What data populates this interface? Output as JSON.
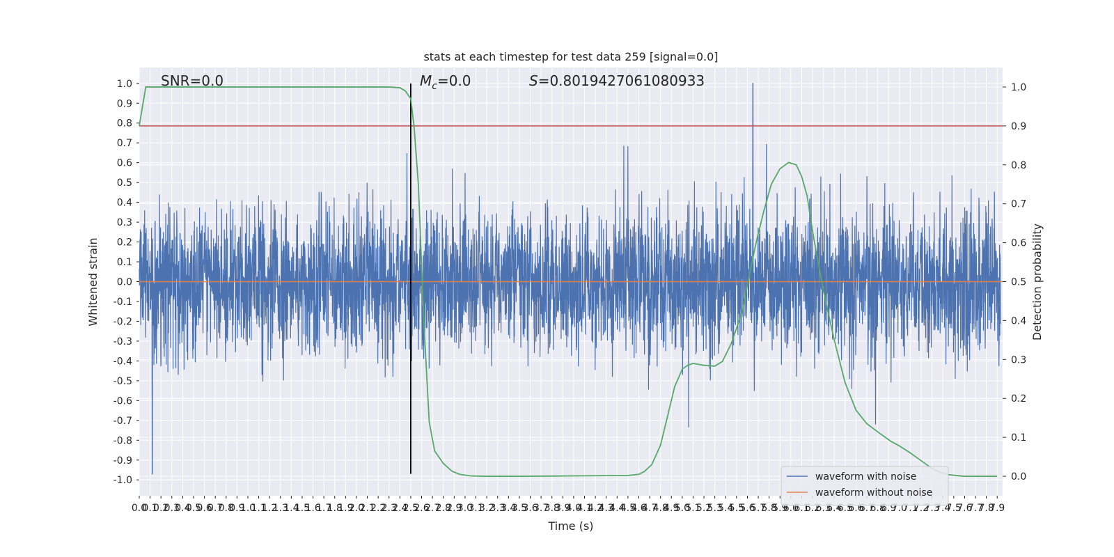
{
  "chart_data": {
    "type": "line",
    "title": "stats at each timestep for test data 259 [signal=0.0]",
    "xlabel": "Time (s)",
    "ylabel": "Whitened strain",
    "y2label": "Detection probability",
    "xlim": [
      0.0,
      7.95
    ],
    "ylim": [
      -1.08,
      1.08
    ],
    "y2lim": [
      -0.05,
      1.05
    ],
    "grid": true,
    "x_ticks": [
      "0.0",
      "0.1",
      "0.2",
      "0.3",
      "0.4",
      "0.5",
      "0.6",
      "0.7",
      "0.8",
      "0.9",
      "1.0",
      "1.1",
      "1.2",
      "1.3",
      "1.4",
      "1.5",
      "1.6",
      "1.7",
      "1.8",
      "1.9",
      "2.0",
      "2.1",
      "2.2",
      "2.3",
      "2.4",
      "2.5",
      "2.6",
      "2.7",
      "2.8",
      "2.9",
      "3.0",
      "3.1",
      "3.2",
      "3.3",
      "3.4",
      "3.5",
      "3.6",
      "3.7",
      "3.8",
      "3.9",
      "4.0",
      "4.1",
      "4.2",
      "4.3",
      "4.4",
      "4.5",
      "4.6",
      "4.7",
      "4.8",
      "4.9",
      "5.0",
      "5.1",
      "5.2",
      "5.3",
      "5.4",
      "5.5",
      "5.6",
      "5.7",
      "5.8",
      "5.9",
      "6.0",
      "6.1",
      "6.2",
      "6.3",
      "6.4",
      "6.5",
      "6.6",
      "6.7",
      "6.8",
      "6.9",
      "7.0",
      "7.1",
      "7.2",
      "7.3",
      "7.4",
      "7.5",
      "7.6",
      "7.7",
      "7.8",
      "7.9"
    ],
    "y_ticks": [
      "1.0",
      "0.9",
      "0.8",
      "0.7",
      "0.6",
      "0.5",
      "0.4",
      "0.3",
      "0.2",
      "0.1",
      "0.0",
      "-0.1",
      "-0.2",
      "-0.3",
      "-0.4",
      "-0.5",
      "-0.6",
      "-0.7",
      "-0.8",
      "-0.9",
      "-1.0"
    ],
    "y2_ticks": [
      "1.0",
      "0.9",
      "0.8",
      "0.7",
      "0.6",
      "0.5",
      "0.4",
      "0.3",
      "0.2",
      "0.1",
      "0.0"
    ],
    "annotations": {
      "snr": "SNR=0.0",
      "mc": "M",
      "mc_sub": "c",
      "mc_value": "=0.0",
      "s_symbol": "S",
      "s_value": "=0.8019427061080933"
    },
    "threshold": {
      "y2": 0.9,
      "color": "#c44e52"
    },
    "vertical_line": {
      "x": 2.5,
      "y_range": [
        -0.97,
        1.0
      ],
      "color": "#000000"
    },
    "noise_waveform": {
      "name": "waveform with noise",
      "color": "#4c72b0",
      "typical_amplitude": 0.32,
      "peak": {
        "x": 5.65,
        "y": 1.0
      },
      "min": {
        "x": 0.12,
        "y": -0.97
      }
    },
    "clean_waveform": {
      "name": "waveform without noise",
      "color": "#dd8452",
      "y": 0.0
    },
    "detection_probability": {
      "color": "#55a868",
      "x": [
        0.0,
        0.06,
        0.1,
        0.2,
        0.5,
        1.0,
        1.5,
        2.0,
        2.3,
        2.4,
        2.45,
        2.5,
        2.53,
        2.57,
        2.62,
        2.67,
        2.72,
        2.8,
        2.88,
        2.95,
        3.05,
        3.2,
        3.5,
        4.0,
        4.5,
        4.6,
        4.65,
        4.72,
        4.8,
        4.87,
        4.93,
        5.0,
        5.05,
        5.1,
        5.2,
        5.3,
        5.37,
        5.45,
        5.55,
        5.62,
        5.68,
        5.75,
        5.82,
        5.9,
        5.98,
        6.05,
        6.1,
        6.15,
        6.2,
        6.25,
        6.32,
        6.4,
        6.5,
        6.6,
        6.7,
        6.82,
        6.92,
        7.0,
        7.1,
        7.2,
        7.3,
        7.38,
        7.45,
        7.52,
        7.6,
        7.75,
        7.9
      ],
      "y": [
        0.9,
        1.0,
        1.0,
        1.0,
        1.0,
        1.0,
        1.0,
        1.0,
        1.0,
        0.998,
        0.99,
        0.97,
        0.9,
        0.75,
        0.4,
        0.14,
        0.065,
        0.033,
        0.013,
        0.005,
        0.001,
        0.0,
        0.0,
        0.001,
        0.002,
        0.005,
        0.012,
        0.03,
        0.08,
        0.16,
        0.23,
        0.275,
        0.285,
        0.29,
        0.285,
        0.283,
        0.295,
        0.34,
        0.42,
        0.52,
        0.6,
        0.68,
        0.75,
        0.79,
        0.806,
        0.8,
        0.77,
        0.72,
        0.63,
        0.55,
        0.45,
        0.35,
        0.24,
        0.17,
        0.135,
        0.11,
        0.09,
        0.078,
        0.06,
        0.04,
        0.02,
        0.01,
        0.004,
        0.002,
        0.0,
        0.0,
        0.0
      ]
    },
    "legend": {
      "position": "lower-right"
    }
  }
}
